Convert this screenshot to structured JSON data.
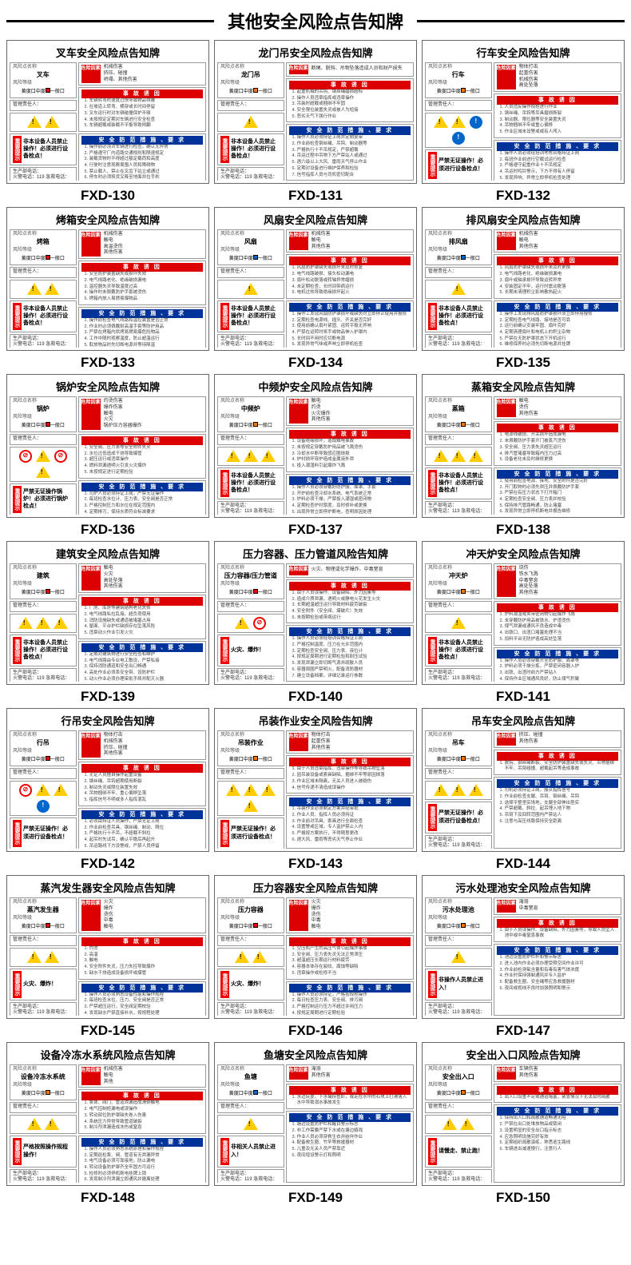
{
  "page_title": "其他安全风险点告知牌",
  "colors": {
    "red": "#d00",
    "blue": "#039",
    "yellow": "#fc0",
    "orange": "#f70",
    "text": "#000",
    "border": "#666"
  },
  "common": {
    "hazard_header": "危险因素",
    "cause_header": "事 故 诱 因",
    "measure_header": "安 全 防 范 措 施 、要 求",
    "tip_label": "重要提示",
    "info_name_label": "风险点名称",
    "risk_label": "风险等级",
    "mgr_label": "管理责任人：",
    "phone_label": "生产部电话：",
    "phone_text": "火警电话：119  急救电话：120"
  },
  "icon_defs": {
    "warn": "tri",
    "shock": "tri",
    "fire": "tri",
    "prohibit": "circ red",
    "mandatory": "circ blue"
  },
  "cards": [
    {
      "code": "FXD-130",
      "title": "叉车安全风险点告知牌",
      "name": "叉车",
      "risk": "red",
      "hazards": [
        "机械伤害",
        "挤压、碰撞",
        "坍塌、其他伤害"
      ],
      "icons": [
        "warn",
        "warn"
      ],
      "tip": "非本设备人员禁止操作！必须进行设备检点！",
      "causes": [
        "车辆转弯时速度过快导致物品倾覆",
        "在坡道上转弯、横穿或长时间停留",
        "叉车运行时对车辆碰撞保护不够",
        "未按规定定期对车辆进行安全检查",
        "车辆超载或装载不平衡导致倾翻"
      ],
      "measures": [
        "操作前必须对车辆进行检查，确认无异常",
        "严格遵守厂内道路交通规则和限速规定",
        "装载货物时不得超过额定载荷和高度",
        "行驶时注意观察周围人员和障碍物",
        "禁止载人、禁止在叉齿下站立或通过",
        "停车时必须将货叉降至地面并拉手刹",
        "发现异常立即停车检查，不得带病作业"
      ]
    },
    {
      "code": "FXD-131",
      "title": "龙门吊安全风险点告知牌",
      "name": "龙门吊",
      "risk": "orange",
      "hazards": [
        "断绳、脱钩、吊物坠落造成人员和财产损失"
      ],
      "icons": [
        "warn"
      ],
      "tip": "非本设备人员禁止操作！必须进行设备检点！",
      "causes": [
        "起重机械的吊钩、钢丝绳磨损超标",
        "操作人员违章指挥或违章操作",
        "吊装时超载或捆绑不牢固",
        "安全限位装置失灵或被人为短接",
        "恶劣天气下强行作业"
      ],
      "measures": [
        "操作人员必须持证上岗并定期复审",
        "作业前检查钢丝绳、吊钩、制动器等",
        "严格执行十不吊规定，严禁超载",
        "吊运过程中吊物下方严禁站人或通过",
        "遇六级以上大风、雷雨天气停止作业",
        "定期对设备进行维护保养和检验",
        "信号指挥人员与司机密切配合"
      ]
    },
    {
      "code": "FXD-132",
      "title": "行车安全风险告知牌",
      "name": "行车",
      "risk": "orange",
      "hazards": [
        "物体打击",
        "起重伤害",
        "机械伤害",
        "高处坠落"
      ],
      "icons": [
        "warn",
        "warn",
        "mandatory",
        "mandatory"
      ],
      "tip": "严禁无证操作！必须进行设备检点！",
      "causes": [
        "人员违反操作规程进行作业",
        "钢丝绳、吊钩等吊具磨损断裂",
        "制动器、限位器等安全装置失灵",
        "吊物捆绑不牢或重心偏移",
        "作业区域未设警戒或有人闯入"
      ],
      "measures": [
        "操作人员必须经培训考核合格持证上岗",
        "每班作业前进行空载试运行检查",
        "严格遵守起重作业十不吊规定",
        "吊运时鸣铃警示，下方不得有人停留",
        "发现异响、异常立即停机检查处理",
        "定期检验检测，保持设备完好状态",
        "严禁用行车吊运人员或进行斜拉作业"
      ]
    },
    {
      "code": "FXD-133",
      "title": "烤箱安全风险点告知牌",
      "name": "烤箱",
      "risk": "red",
      "hazards": [
        "机械伤害",
        "触电",
        "高温烫伤",
        "其他伤害"
      ],
      "icons": [
        "warn",
        "warn"
      ],
      "tip": "非本设备人员禁止操作！必须进行设备检点！",
      "causes": [
        "安全防护装置缺失或损坏失效",
        "电气线路老化、绝缘破损漏电",
        "温控器失灵导致温度过高",
        "操作时未佩戴防护手套被烫伤",
        "烤箱内放入易燃易爆物品"
      ],
      "measures": [
        "操作前检查电气线路和温控装置是否正常",
        "作业时必须佩戴耐高温手套等防护用品",
        "严禁在烤箱内烘烤易燃易爆危险物品",
        "工作中随时观察温度，防止超温运行",
        "取放物品时先切断电源并等待降温",
        "定期对设备进行检查维护和清理",
        "发现异常立即断电停机并报告处理"
      ]
    },
    {
      "code": "FXD-134",
      "title": "风扇安全风险点告知牌",
      "name": "风扇",
      "risk": "blue",
      "hazards": [
        "机械伤害",
        "触电",
        "其他伤害"
      ],
      "icons": [
        "warn"
      ],
      "tip": "非本设备人员禁止操作！必须进行设备检点！",
      "causes": [
        "风扇防护罩缺失或损坏未及时修复",
        "电气线路破损、接头松动漏电",
        "扇叶松动脱落或转轴异常磨损",
        "未定期检查，长时间带病运行",
        "电机过热导致绝缘损坏起火"
      ],
      "measures": [
        "操作工发现风扇防护罩损坏或缺失时立即停止使用并报修",
        "定期检查电源线、插头、开关是否完好",
        "使用前确认扇叶紧固、运转平稳无异响",
        "严禁在运转时将手或物品伸入护罩内",
        "长时间不用时应切断电源",
        "发现异常气味或声响立即停机检查"
      ]
    },
    {
      "code": "FXD-135",
      "title": "排风扇安全风险点告知牌",
      "name": "排风扇",
      "risk": "blue",
      "hazards": [
        "机械伤害",
        "触电",
        "其他伤害"
      ],
      "icons": [
        "warn"
      ],
      "tip": "非本设备人员禁止操作！必须进行设备检点！",
      "causes": [
        "风扇防护罩缺失或损坏未及时更换",
        "电气线路老化、绝缘破损漏电",
        "扇叶或轴承损坏导致运转异常",
        "安装固定不牢，运行时震动脱落",
        "长期未清理积尘影响散热起火"
      ],
      "measures": [
        "操作工发现排风扇防护罩损坏须立即停用报修",
        "定期检查电气线路、接地是否可靠",
        "运行前确认安装牢固、扇叶完好",
        "定期清理扇叶和电机上的积尘杂物",
        "严禁在无防护罩状态下开机运行",
        "维修保养时必须先切断电源并挂牌"
      ]
    },
    {
      "code": "FXD-136",
      "title": "锅炉安全风险点告知牌",
      "name": "锅炉",
      "risk": "red",
      "hazards": [
        "灼烫伤害",
        "爆炸伤害",
        "触电",
        "火灾",
        "锅炉压力容器爆炸"
      ],
      "icons": [
        "prohibit",
        "warn",
        "prohibit",
        "warn"
      ],
      "tip": "严禁无证操作锅炉！必须进行锅炉检点！",
      "causes": [
        "安全阀、压力表等安全附件失灵",
        "水位过低造成干烧导致爆管",
        "超压运行或违章操作",
        "燃料泄漏遇明火引发火灾爆炸",
        "未按规定进行定期检验"
      ],
      "measures": [
        "司炉人员必须持证上岗，严禁无证操作",
        "每班检查水位计、压力表、安全阀是否正常",
        "严格控制压力和水位在规定范围内",
        "定期排污，保持水质符合标准要求",
        "发现缺水严禁立即加水，按规程处理",
        "锅炉房内严禁堆放易燃易爆物品",
        "按期进行内外部检验和水压试验"
      ]
    },
    {
      "code": "FXD-137",
      "title": "中频炉安全风险点告知牌",
      "name": "中频炉",
      "risk": "orange",
      "hazards": [
        "触电",
        "灼烫",
        "火灾爆炸",
        "其他伤害"
      ],
      "icons": [
        "warn",
        "warn",
        "warn"
      ],
      "tip": "非本设备人员禁止操作！必须进行设备检点！",
      "causes": [
        "设备绝缘损坏，造成触电事故",
        "未按规定穿戴防护用品被飞溅烫伤",
        "冷却水中断导致感应圈烧损",
        "炉衬损坏穿炉造成金属液外泄",
        "投入潮湿料引起爆炸飞溅"
      ],
      "measures": [
        "操作人员必须穿戴好防护服、面罩、手套",
        "开炉前检查冷却水系统、电气系统正常",
        "炉料必须干燥，严禁投入潮湿或密闭物",
        "定期检查炉衬厚度，及时修补或更换",
        "出现异常立即停炉断电，查明原因处理",
        "炉前区域保持畅通，无关人员不得靠近"
      ]
    },
    {
      "code": "FXD-138",
      "title": "蒸箱安全风险点告知牌",
      "name": "蒸箱",
      "risk": "orange",
      "hazards": [
        "触电",
        "烫伤",
        "其他伤害"
      ],
      "icons": [
        "warn",
        "warn",
        "warn"
      ],
      "tip": "非本设备人员禁止操作！必须进行设备检点！",
      "causes": [
        "电源线破损、开关损坏造成漏电",
        "未佩戴防护手套开门被蒸汽烫伤",
        "安全阀、压力表失灵超压运行",
        "排汽管堵塞导致箱内压力过高",
        "设备老化未及时维修更换"
      ],
      "measures": [
        "使用前检查电源、接地、安全附件是否完好",
        "开门取物时必须先泄压并佩戴防护手套",
        "严禁在有压力状态下打开箱门",
        "定期检查安全阀、压力表并校验",
        "保持排汽管路畅通，防止堵塞",
        "发现异常立即停机断电并报告维修"
      ]
    },
    {
      "code": "FXD-139",
      "title": "建筑安全风险点告知牌",
      "name": "建筑",
      "risk": "red",
      "hazards": [
        "触电",
        "火灾",
        "高处坠落",
        "其他伤害"
      ],
      "icons": [
        "warn",
        "warn",
        "warn"
      ],
      "tip": "非本设备人员禁止操作！必须进行设备检点！",
      "causes": [
        "厂房、库房等建筑结构老化失修",
        "电气线路私拉乱接、超负荷使用",
        "消防设施缺失或通道被堵塞占用",
        "屋面、平台护栏缺损存在坠落风险",
        "违章动火作业引发火灾"
      ],
      "measures": [
        "定期对建筑物进行安全检查和维护",
        "电气线路由专业电工敷设，严禁私接",
        "保持消防通道和安全出口畅通",
        "高处作业必须系安全带、设防护栏",
        "动火作业必须办理审批手续并配灭火器",
        "发现隐患立即上报并采取防范措施"
      ]
    },
    {
      "code": "FXD-140",
      "title": "压力容器、压力管道风险告知牌",
      "name": "压力容器/压力管道",
      "risk": "red",
      "hazards": [
        "火灾、物理或化学爆炸、中毒窒息"
      ],
      "icons": [
        "warn",
        "prohibit"
      ],
      "tip": "火灾、爆炸！",
      "causes": [
        "由于人员误操作、设备缺陷、外力因素等",
        "造成介质泄漏，遇明火或静电火花发生火灾",
        "长期超温超压运行导致材料疲劳破裂",
        "安全附件（安全阀、爆破片）失效",
        "未按期检验或带病运行"
      ],
      "measures": [
        "操作人员必须经培训合格持证上岗",
        "严格控制温度、压力在允许范围内",
        "定期检查安全阀、压力表、液位计",
        "按规定周期进行定期检验和耐压试验",
        "发现泄漏立即切断气源并疏散人员",
        "容器周围严禁明火，配备消防器材",
        "建立设备档案，详细记录运行参数"
      ]
    },
    {
      "code": "FXD-141",
      "title": "冲天炉安全风险点告知牌",
      "name": "冲天炉",
      "risk": "orange",
      "hazards": [
        "烧伤",
        "铁水飞溅",
        "中毒窒息",
        "高处坠落",
        "其他伤害"
      ],
      "icons": [
        "warn"
      ],
      "tip": "非本设备人员禁止操作！必须进行设备检点！",
      "causes": [
        "炉料潮湿或夹带密闭物引起爆炸飞溅",
        "未穿戴防护用品被铁水、炉渣烫伤",
        "煤气泄漏或通风不良造成中毒",
        "出铁口、出渣口堵塞处理不当",
        "加料平台无防护造成高处坠落"
      ],
      "measures": [
        "操作人员必须穿戴齐全防护服、面罩等",
        "炉料必须干燥分拣，严禁密闭容器入炉",
        "出铁、出渣时前方严禁站人",
        "保持作业区域通风良好，防止煤气积聚",
        "加料平台设置牢固护栏和防滑措施",
        "定期检查炉体、风口、水冷系统"
      ]
    },
    {
      "code": "FXD-142",
      "title": "行吊安全风险告知牌",
      "name": "行吊",
      "risk": "red",
      "hazards": [
        "物体打击",
        "机械伤害",
        "挤压、碰撞",
        "其他伤害"
      ],
      "icons": [
        "prohibit",
        "warn",
        "warn",
        "mandatory"
      ],
      "tip": "严禁无证操作！必须进行设备检点！",
      "causes": [
        "无证人员擅自操作起重设备",
        "钢丝绳、吊钩超期使用断裂",
        "制动失灵或限位装置失效",
        "吊物捆绑不牢、重心偏移坠落",
        "指挥信号不明或多人指挥混乱"
      ],
      "measures": [
        "必须由持证人员操作，严禁无证上岗",
        "作业前检查吊具、钢丝绳、制动、限位",
        "严格执行十不吊，不超载不斜拉",
        "起吊时先试吊，确认平稳后再起升",
        "吊运路线下方设警戒，严禁人员停留",
        "作业完毕将吊钩升至安全高度并断电"
      ]
    },
    {
      "code": "FXD-143",
      "title": "吊装作业安全风险告知牌",
      "name": "吊装作业",
      "risk": "orange",
      "hazards": [
        "物体打击",
        "起重伤害",
        "其他伤害"
      ],
      "icons": [
        "warn",
        "warn",
        "warn",
        "warn"
      ],
      "tip": "严禁无证操作！必须进行设备检点！",
      "causes": [
        "由于人员违章指挥、违章操作等导致吊物坠落",
        "因吊装设备或索具缺陷、捆绑不牢等原因掉落",
        "作业区域未隔离，无关人员进入被砸伤",
        "信号传递不清造成误操作"
      ],
      "measures": [
        "吊装作业必须制定方案并经审批",
        "作业人员、指挥人员必须持证",
        "作业前对吊具、索具进行全面检查",
        "设置警戒区域，专人监护禁止入内",
        "严格按方案执行，不得随意更改",
        "遇大风、雷雨等恶劣天气停止作业"
      ]
    },
    {
      "code": "FXD-144",
      "title": "吊车安全风险点告知牌",
      "name": "吊车",
      "risk": "orange",
      "hazards": [
        "挤压、碰撞",
        "其他伤害"
      ],
      "icons": [
        "warn",
        "warn",
        "warn"
      ],
      "tip": "严禁无证操作！必须进行设备检点！",
      "causes": [
        "脱钩、钢丝绳断裂、安全防护装置缺失或失灵、吊物捆绑不牢、吊臂碰撞、超载起吊等造成事故"
      ],
      "measures": [
        "司机必须持证上岗，服从指挥信号",
        "作业前检查支腿、吊臂、钢丝绳、吊钩",
        "选择平整坚实场地，支腿全部伸出垫实",
        "严禁超载、斜拉、起吊埋入地下物",
        "吊臂下及回转范围内严禁站人",
        "注意与高压线路保持安全距离"
      ]
    },
    {
      "code": "FXD-145",
      "title": "蒸汽发生器安全风险点告知牌",
      "name": "蒸汽发生器",
      "risk": "red",
      "hazards": [
        "火灾",
        "爆炸",
        "烫伤",
        "中毒",
        "触电"
      ],
      "icons": [
        "warn",
        "warn"
      ],
      "tip": "火灾、爆炸！",
      "causes": [
        "灼烫",
        "高温",
        "触电",
        "安全附件失灵，压力失控导致爆炸",
        "缺水干烧造成设备损坏或爆管"
      ],
      "measures": [
        "操作人员必须熟悉设备性能和操作规程",
        "每班检查水位、压力、安全阀是否正常",
        "严禁超压运行，安全阀定期校验",
        "发现缺水严禁直接补水，按规程处理",
        "设备周围不得堆放易燃物品",
        "定期进行内外部检验和维护保养"
      ]
    },
    {
      "code": "FXD-146",
      "title": "压力容器安全风险点告知牌",
      "name": "压力容器",
      "risk": "red",
      "hazards": [
        "火灾",
        "爆炸",
        "烫伤",
        "中毒",
        "触电"
      ],
      "icons": [
        "warn",
        "warn"
      ],
      "tip": "火灾、爆炸！",
      "causes": [
        "空压机产生的高压气体引起爆炸事故",
        "安全阀、压力表失灵无法正常泄压",
        "超温超压长期运行材料疲劳",
        "容器本体存在裂纹、腐蚀等缺陷",
        "违章操作或检修不当"
      ],
      "measures": [
        "操作人员必须持证，严格按规程操作",
        "每日检查压力表、安全阀、排污阀",
        "严格控制运行压力不超过许用压力",
        "按规定周期进行定期检验",
        "发现异常声响、泄漏立即停机处理",
        "建立设备技术档案和运行记录"
      ]
    },
    {
      "code": "FXD-147",
      "title": "污水处理池安全风险点告知牌",
      "name": "污水处理池",
      "risk": "orange",
      "hazards": [
        "淹溺",
        "中毒窒息"
      ],
      "icons": [
        "warn"
      ],
      "tip": "非操作人员禁止进入！",
      "causes": [
        "由于人员误操作、设备缺陷、外力因素等，导致人员坠入池中或中毒窒息事故"
      ],
      "measures": [
        "池边设置防护栏杆和警示标志",
        "进入池内作业必须办理受限空间作业许可",
        "作业前检测氧含量和有毒有害气体浓度",
        "作业时保持强制通风并专人监护",
        "配备救生圈、安全绳等应急救援器材",
        "夜间或视线不良时加强照明和警示"
      ]
    },
    {
      "code": "FXD-148",
      "title": "设备冷冻水系统风险点告知牌",
      "name": "设备冷冻水系统",
      "risk": "orange",
      "hazards": [
        "机械伤害",
        "触电",
        "其他"
      ],
      "icons": [
        "warn",
        "warn"
      ],
      "tip": "严格按照操作规程操作！",
      "causes": [
        "泵体、阀门、管道泄漏造成滑倒触电",
        "电气控制柜漏电或误操作",
        "转动部位防护罩缺失卷入伤害",
        "系统压力异常导致管道破裂",
        "制冷剂泄漏造成冻伤或窒息"
      ],
      "measures": [
        "操作人员必须熟悉系统原理和操作规程",
        "定期巡检泵、阀、管道有无泄漏异常",
        "电气设备必须可靠接地，防止漏电",
        "转动设备防护罩齐全牢固方可运行",
        "检修时必须停机断电挂牌上锁",
        "发现制冷剂泄漏立即通风并撤离处理"
      ]
    },
    {
      "code": "FXD-149",
      "title": "鱼塘安全风险点告知牌",
      "name": "鱼塘",
      "risk": "blue",
      "hazards": [
        "淹溺",
        "其他伤害"
      ],
      "icons": [
        "warn"
      ],
      "tip": "非相关人员禁止进入！",
      "causes": [
        "水边玩耍、下水捕捞鱼虾，或走在水中的石块上打滑落入水中导致溺水事故发生"
      ],
      "measures": [
        "塘边设置防护栏和醒目警示标志",
        "非工作需要严禁下水或在塘边嬉戏",
        "作业人员必须穿救生衣并结伴作业",
        "配备救生圈、竹竿等救援器材",
        "儿童及无关人员严禁靠近",
        "夜间增设警示灯和照明"
      ]
    },
    {
      "code": "FXD-150",
      "title": "安全出入口风险点告知牌",
      "name": "安全出入口",
      "risk": "orange",
      "hazards": [
        "车辆伤害",
        "其他伤害"
      ],
      "icons": [
        "warn",
        "warn"
      ],
      "tip": "请慢走、禁止跑！",
      "causes": [
        "出入口设置不足或通道堵塞，紧急情况下无法及时疏散"
      ],
      "measures": [
        "保持出入口和疏散通道畅通无阻",
        "严禁在出口处堆放物品或锁闭",
        "设置明显的安全出口指示标志",
        "应急照明设施完好有效",
        "定期组织疏散演练，熟悉逃生路线",
        "车辆进出减速慢行，注意行人"
      ]
    }
  ]
}
